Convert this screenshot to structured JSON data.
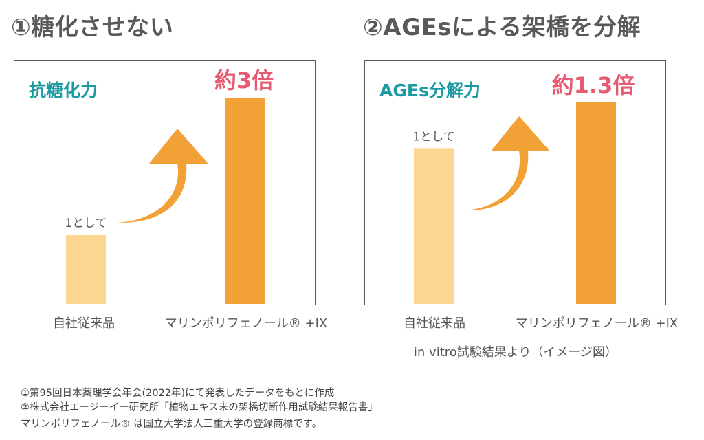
{
  "headings": {
    "left": "①糖化させない",
    "right": "②AGEsによる架橋を分解"
  },
  "colors": {
    "base_bar": "#fbd792",
    "product_bar": "#f2a136",
    "arrow": "#f2a136",
    "label_teal": "#1b9aa3",
    "label_pink": "#e65a72",
    "frame": "#595959"
  },
  "chart_data": [
    {
      "type": "bar",
      "panel_label": "抗糖化力",
      "categories": [
        "自社従来品",
        "マリンポリフェノール® +IX"
      ],
      "values": [
        1,
        3
      ],
      "bar_labels": [
        "1として",
        "約3倍"
      ],
      "ylim": [
        0,
        3.0
      ]
    },
    {
      "type": "bar",
      "panel_label": "AGEs分解力",
      "categories": [
        "自社従来品",
        "マリンポリフェノール® +IX"
      ],
      "values": [
        1,
        1.3
      ],
      "bar_labels": [
        "1として",
        "約1.3倍"
      ],
      "ylim": [
        0,
        1.33
      ],
      "caption": "in vitro試験結果より（イメージ図）"
    }
  ],
  "notes": [
    "①第95回日本薬理学会年会(2022年)にて発表したデータをもとに作成",
    "②株式会社エージーイー研究所「植物エキス末の架橋切断作用試験結果報告書」",
    "マリンポリフェノール® は国立大学法人三重大学の登録商標です。"
  ]
}
